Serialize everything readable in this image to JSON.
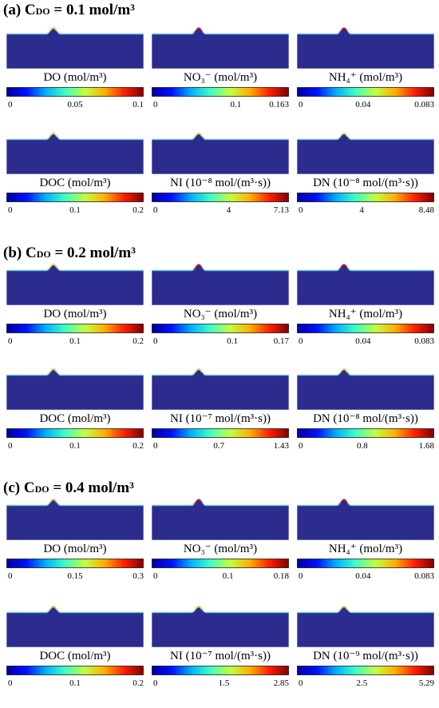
{
  "colorbar": {
    "stops": [
      "#0000a0",
      "#0010ff",
      "#00b0ff",
      "#40ffc0",
      "#c0ff40",
      "#ffb000",
      "#ff2000",
      "#800000"
    ]
  },
  "domain_colors": {
    "background": "#2b2c8e",
    "edge": "#d8d8d8",
    "band": "#2fc2d8",
    "hot": "#c81e10",
    "warm": "#f6d22a"
  },
  "sections": [
    {
      "prefix": "(a) C",
      "sub": "DO",
      "suffix": " = 0.1 mol/m³",
      "panels": [
        {
          "label": "DO (mol/m³)",
          "ticks": [
            "0",
            "0.05",
            "0.1"
          ],
          "mid_pos": 0.5
        },
        {
          "label": "NO₃⁻ (mol/m³)",
          "ticks": [
            "0",
            "0.1",
            "0.163"
          ],
          "mid_pos": 0.613
        },
        {
          "label": "NH₄⁺ (mol/m³)",
          "ticks": [
            "0",
            "0.04",
            "0.083"
          ],
          "mid_pos": 0.482
        },
        {
          "label": "DOC (mol/m³)",
          "ticks": [
            "0",
            "0.1",
            "0.2"
          ],
          "mid_pos": 0.5
        },
        {
          "label": "NI (10⁻⁸ mol/(m³·s))",
          "ticks": [
            "0",
            "4",
            "7.13"
          ],
          "mid_pos": 0.561
        },
        {
          "label": "DN (10⁻⁸ mol/(m³·s))",
          "ticks": [
            "0",
            "4",
            "8.48"
          ],
          "mid_pos": 0.472
        }
      ]
    },
    {
      "prefix": "(b) C",
      "sub": "DO",
      "suffix": " = 0.2 mol/m³",
      "panels": [
        {
          "label": "DO (mol/m³)",
          "ticks": [
            "0",
            "0.1",
            "0.2"
          ],
          "mid_pos": 0.5
        },
        {
          "label": "NO₃⁻ (mol/m³)",
          "ticks": [
            "0",
            "0.1",
            "0.17"
          ],
          "mid_pos": 0.588
        },
        {
          "label": "NH₄⁺ (mol/m³)",
          "ticks": [
            "0",
            "0.04",
            "0.083"
          ],
          "mid_pos": 0.482
        },
        {
          "label": "DOC (mol/m³)",
          "ticks": [
            "0",
            "0.1",
            "0.2"
          ],
          "mid_pos": 0.5
        },
        {
          "label": "NI (10⁻⁷ mol/(m³·s))",
          "ticks": [
            "0",
            "0.7",
            "1.43"
          ],
          "mid_pos": 0.49
        },
        {
          "label": "DN (10⁻⁸ mol/(m³·s))",
          "ticks": [
            "0",
            "0.8",
            "1.68"
          ],
          "mid_pos": 0.476
        }
      ]
    },
    {
      "prefix": "(c) C",
      "sub": "DO",
      "suffix": " = 0.4 mol/m³",
      "panels": [
        {
          "label": "DO (mol/m³)",
          "ticks": [
            "0",
            "0.15",
            "0.3"
          ],
          "mid_pos": 0.5
        },
        {
          "label": "NO₃⁻ (mol/m³)",
          "ticks": [
            "0",
            "0.1",
            "0.18"
          ],
          "mid_pos": 0.556
        },
        {
          "label": "NH₄⁺ (mol/m³)",
          "ticks": [
            "0",
            "0.04",
            "0.083"
          ],
          "mid_pos": 0.482
        },
        {
          "label": "DOC (mol/m³)",
          "ticks": [
            "0",
            "0.1",
            "0.2"
          ],
          "mid_pos": 0.5
        },
        {
          "label": "NI (10⁻⁷ mol/(m³·s))",
          "ticks": [
            "0",
            "1.5",
            "2.85"
          ],
          "mid_pos": 0.526
        },
        {
          "label": "DN (10⁻⁹ mol/(m³·s))",
          "ticks": [
            "0",
            "2.5",
            "5.29"
          ],
          "mid_pos": 0.473
        }
      ]
    }
  ]
}
